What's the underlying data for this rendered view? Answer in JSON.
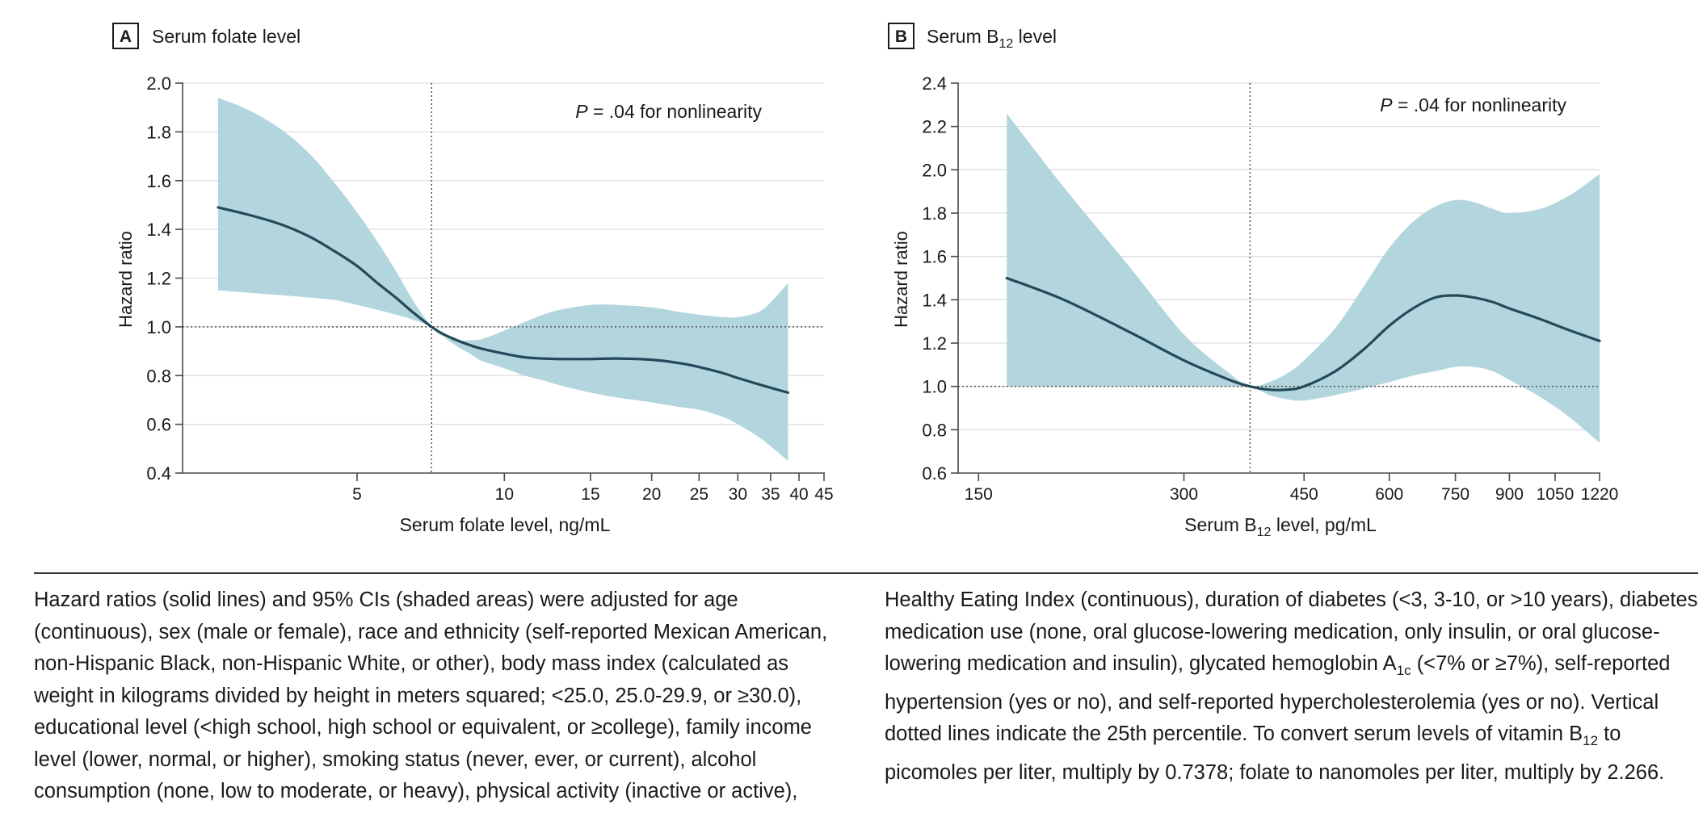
{
  "colors": {
    "band": "#b3d6de",
    "line": "#23495a",
    "grid": "#dedede",
    "axis": "#4a4a4a",
    "text": "#1a1a1a"
  },
  "chart_data": [
    {
      "type": "area",
      "panel_letter": "A",
      "title": "Serum folate level",
      "xlabel": "Serum folate level, ng/mL",
      "ylabel": "Hazard ratio",
      "annotation_p": "P",
      "annotation_rest": " = .04 for nonlinearity",
      "x_scale": "log",
      "xlim": [
        2.2,
        45
      ],
      "ylim": [
        0.4,
        2.0
      ],
      "yticks": [
        0.4,
        0.6,
        0.8,
        1.0,
        1.2,
        1.4,
        1.6,
        1.8,
        2.0
      ],
      "ytick_labels": [
        "0.4",
        "0.6",
        "0.8",
        "1.0",
        "1.2",
        "1.4",
        "1.6",
        "1.8",
        "2.0"
      ],
      "xticks": [
        5,
        10,
        15,
        20,
        25,
        30,
        35,
        40,
        45
      ],
      "xtick_labels": [
        "5",
        "10",
        "15",
        "20",
        "25",
        "30",
        "35",
        "40",
        "45"
      ],
      "grid": true,
      "reference_hline": 1.0,
      "reference_vline": 7.1,
      "series": [
        {
          "x": [
            2.6,
            3.0,
            3.5,
            4.0,
            4.5,
            5.0,
            5.5,
            6.0,
            6.5,
            7.1,
            7.5,
            8.0,
            8.5,
            9.0,
            10,
            11,
            12,
            13,
            15,
            17,
            20,
            23,
            25,
            28,
            30,
            33,
            35,
            38
          ],
          "y": [
            1.49,
            1.46,
            1.42,
            1.37,
            1.31,
            1.25,
            1.18,
            1.12,
            1.06,
            1.0,
            0.97,
            0.945,
            0.925,
            0.91,
            0.89,
            0.875,
            0.87,
            0.868,
            0.868,
            0.87,
            0.865,
            0.85,
            0.835,
            0.81,
            0.79,
            0.765,
            0.75,
            0.73
          ],
          "lower": [
            1.15,
            1.14,
            1.13,
            1.12,
            1.11,
            1.09,
            1.07,
            1.05,
            1.03,
            1.0,
            0.96,
            0.92,
            0.89,
            0.86,
            0.83,
            0.8,
            0.78,
            0.76,
            0.73,
            0.71,
            0.69,
            0.67,
            0.66,
            0.63,
            0.6,
            0.55,
            0.51,
            0.45
          ],
          "upper": [
            1.94,
            1.89,
            1.81,
            1.71,
            1.59,
            1.47,
            1.35,
            1.23,
            1.11,
            1.0,
            0.96,
            0.945,
            0.945,
            0.95,
            0.985,
            1.02,
            1.05,
            1.07,
            1.09,
            1.09,
            1.08,
            1.06,
            1.05,
            1.04,
            1.04,
            1.06,
            1.1,
            1.18
          ]
        }
      ]
    },
    {
      "type": "area",
      "panel_letter": "B",
      "title_main": "Serum B",
      "title_sub": "12",
      "title_tail": " level",
      "xlabel_main": "Serum B",
      "xlabel_sub": "12",
      "xlabel_tail": " level, pg/mL",
      "ylabel": "Hazard ratio",
      "annotation_p": "P",
      "annotation_rest": " = .04 for nonlinearity",
      "x_scale": "log",
      "xlim": [
        140,
        1220
      ],
      "ylim": [
        0.6,
        2.4
      ],
      "yticks": [
        0.6,
        0.8,
        1.0,
        1.2,
        1.4,
        1.6,
        1.8,
        2.0,
        2.2,
        2.4
      ],
      "ytick_labels": [
        "0.6",
        "0.8",
        "1.0",
        "1.2",
        "1.4",
        "1.6",
        "1.8",
        "2.0",
        "2.2",
        "2.4"
      ],
      "xticks": [
        150,
        300,
        450,
        600,
        750,
        900,
        1050,
        1220
      ],
      "xtick_labels": [
        "150",
        "300",
        "450",
        "600",
        "750",
        "900",
        "1050",
        "1220"
      ],
      "grid": true,
      "reference_hline": 1.0,
      "reference_vline": 375,
      "series": [
        {
          "x": [
            165,
            200,
            250,
            300,
            350,
            375,
            400,
            425,
            450,
            500,
            550,
            600,
            650,
            700,
            750,
            800,
            850,
            900,
            1000,
            1100,
            1220
          ],
          "y": [
            1.5,
            1.4,
            1.25,
            1.12,
            1.03,
            1.0,
            0.985,
            0.985,
            1.0,
            1.07,
            1.17,
            1.28,
            1.36,
            1.41,
            1.42,
            1.41,
            1.39,
            1.36,
            1.31,
            1.26,
            1.21
          ],
          "lower": [
            1.0,
            1.0,
            1.0,
            1.0,
            1.0,
            1.0,
            0.96,
            0.94,
            0.935,
            0.96,
            0.99,
            1.02,
            1.05,
            1.07,
            1.09,
            1.09,
            1.07,
            1.03,
            0.95,
            0.86,
            0.74
          ],
          "upper": [
            2.26,
            1.92,
            1.55,
            1.24,
            1.06,
            1.0,
            1.02,
            1.06,
            1.12,
            1.27,
            1.46,
            1.64,
            1.76,
            1.83,
            1.86,
            1.85,
            1.82,
            1.8,
            1.82,
            1.88,
            1.98
          ]
        }
      ]
    }
  ],
  "caption": {
    "left_lines": [
      "Hazard ratios (solid lines) and 95% CIs (shaded areas) were adjusted for age",
      "(continuous), sex (male or female), race and ethnicity (self-reported Mexican American,",
      "non-Hispanic Black, non-Hispanic White, or other), body mass index (calculated as",
      "weight in kilograms divided by height in meters squared; <25.0, 25.0-29.9, or ≥30.0),",
      "educational level (<high school, high school or equivalent, or ≥college), family income",
      "level (lower, normal, or higher), smoking status (never, ever, or current), alcohol",
      "consumption (none, low to moderate, or heavy), physical activity (inactive or active),"
    ],
    "right_line1": "Healthy Eating Index (continuous), duration of diabetes (<3, 3-10, or >10 years), diabetes",
    "right_line2": "medication use (none, oral glucose-lowering medication, only insulin, or oral glucose-",
    "right_line3_a": "lowering medication and insulin), glycated hemoglobin A",
    "right_line3_sub": "1c",
    "right_line3_b": " (<7% or ≥7%), self-reported",
    "right_line4": "hypertension (yes or no), and self-reported hypercholesterolemia (yes or no). Vertical",
    "right_line5": "dotted lines indicate the 25th percentile. To convert serum levels of vitamin B",
    "right_line5_sub": "12",
    "right_line5_b": " to",
    "right_line6": "picomoles per liter, multiply by 0.7378; folate to nanomoles per liter, multiply by 2.266."
  }
}
